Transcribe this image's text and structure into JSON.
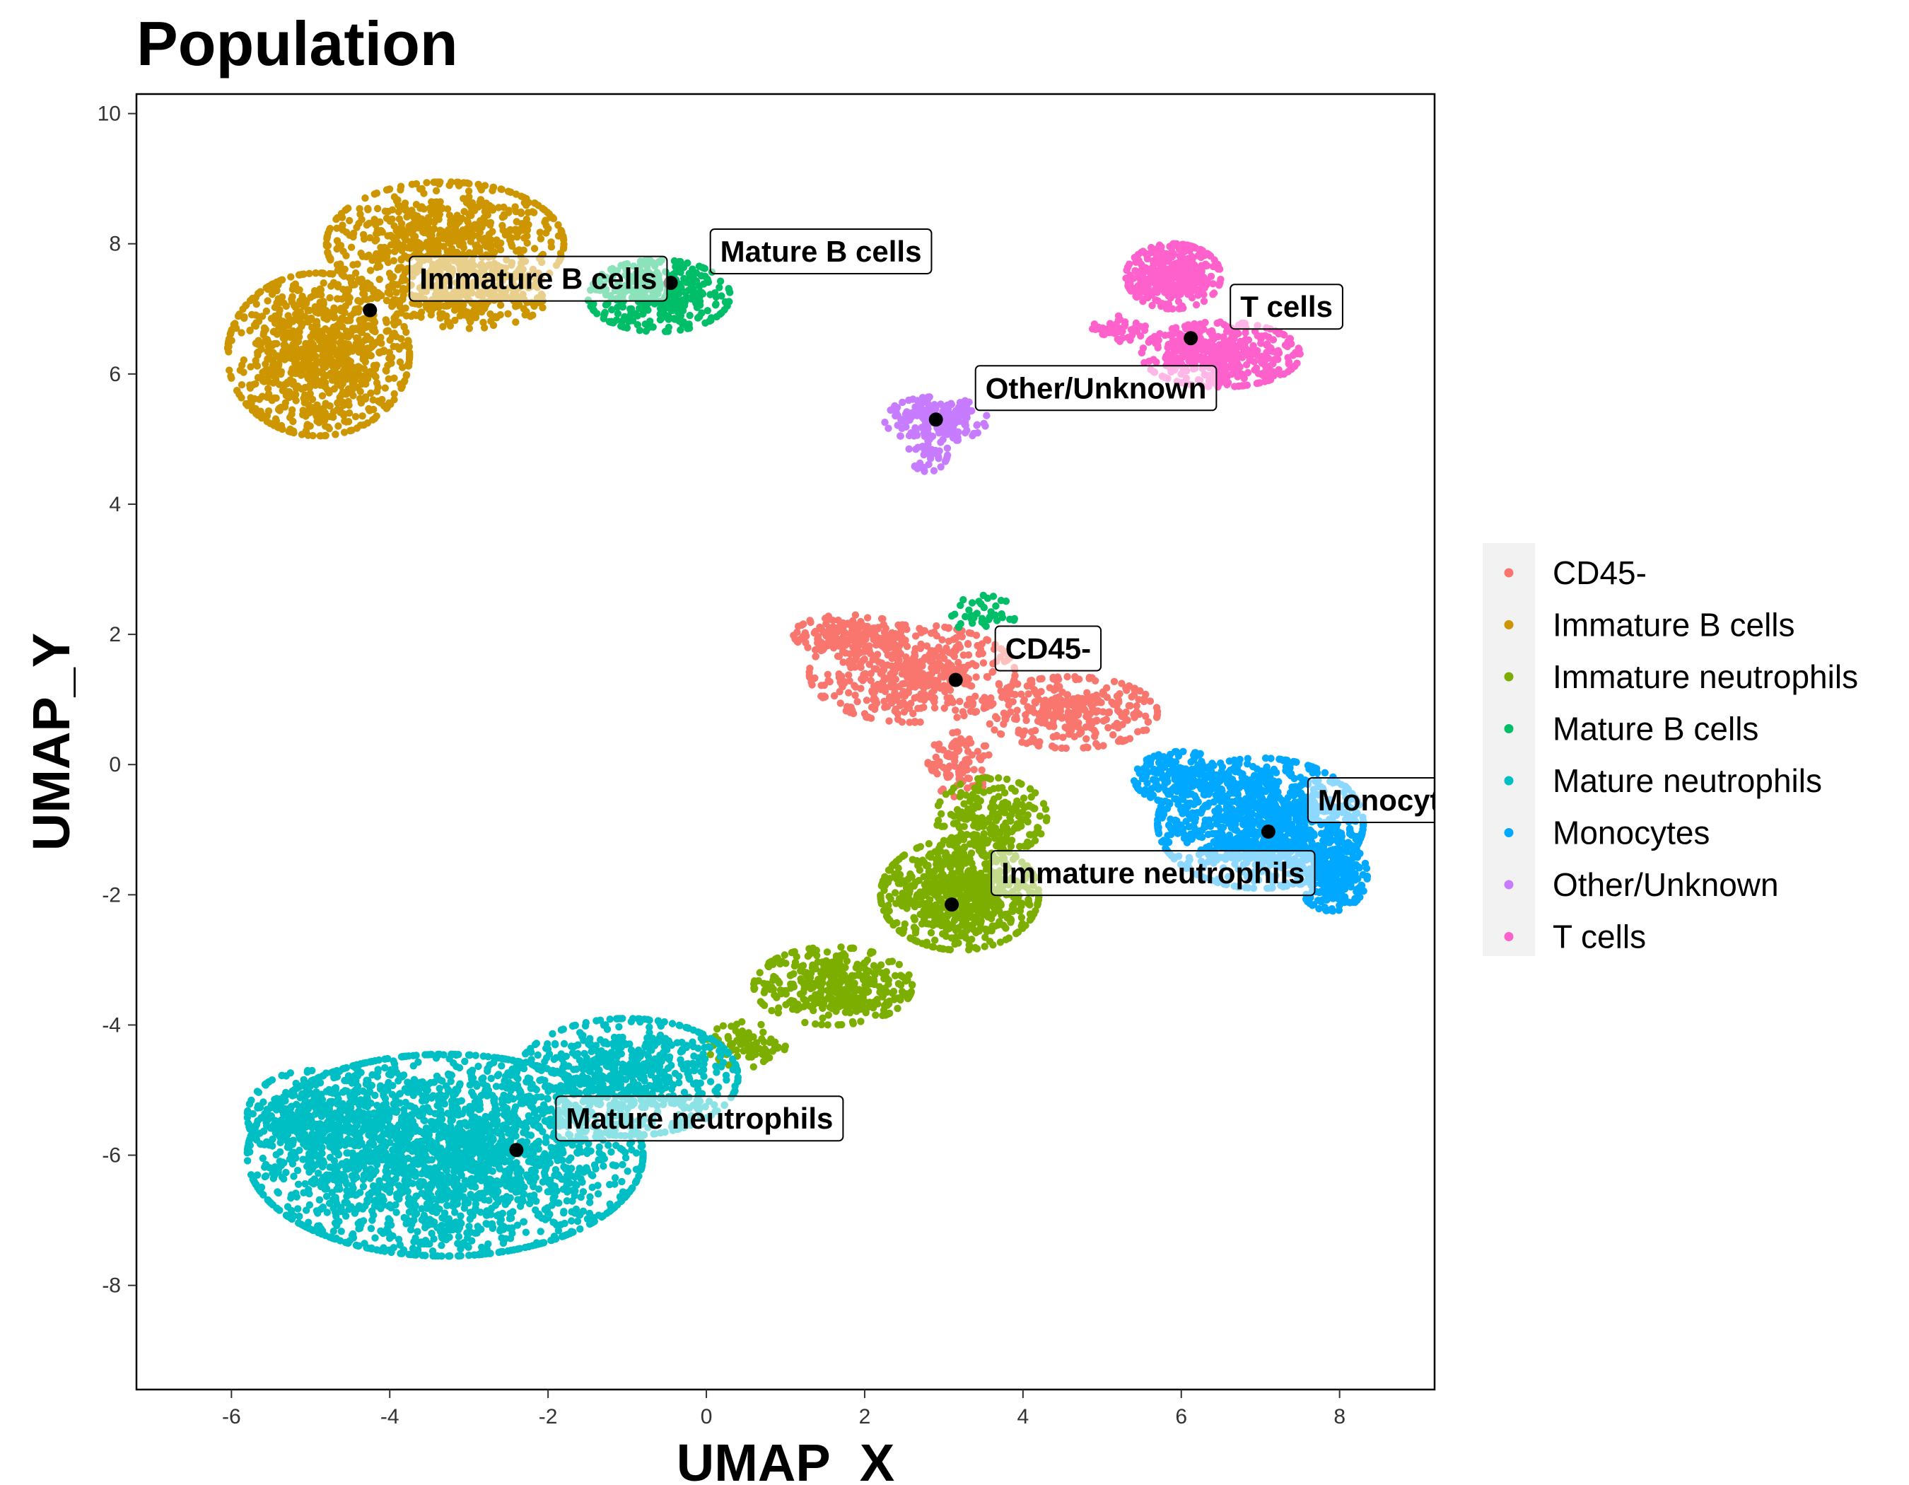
{
  "chart_data": {
    "type": "scatter",
    "title": "Population",
    "xlabel": "UMAP_X",
    "ylabel": "UMAP_Y",
    "xlim": [
      -7.2,
      9.2
    ],
    "ylim": [
      -9.6,
      10.3
    ],
    "xticks": [
      -6,
      -4,
      -2,
      0,
      2,
      4,
      6,
      8
    ],
    "yticks": [
      -8,
      -6,
      -4,
      -2,
      0,
      2,
      4,
      6,
      8,
      10
    ],
    "grid": false,
    "legend_position": "right",
    "legend_title": "",
    "series": [
      {
        "name": "CD45-",
        "color": "#F8766D"
      },
      {
        "name": "Immature B cells",
        "color": "#CD9600"
      },
      {
        "name": "Immature neutrophils",
        "color": "#7CAE00"
      },
      {
        "name": "Mature B cells",
        "color": "#00BE67"
      },
      {
        "name": "Mature neutrophils",
        "color": "#00BFC4"
      },
      {
        "name": "Monocytes",
        "color": "#00A9FF"
      },
      {
        "name": "Other/Unknown",
        "color": "#C77CFF"
      },
      {
        "name": "T cells",
        "color": "#FF61CC"
      }
    ],
    "clusters": [
      {
        "series": 0,
        "blobs": [
          {
            "cx": 2.6,
            "cy": 1.4,
            "rx": 1.3,
            "ry": 0.75,
            "n": 500
          },
          {
            "cx": 4.6,
            "cy": 0.8,
            "rx": 1.1,
            "ry": 0.55,
            "n": 320
          },
          {
            "cx": 1.8,
            "cy": 2.0,
            "rx": 0.7,
            "ry": 0.3,
            "n": 160
          },
          {
            "cx": 3.2,
            "cy": 0.0,
            "rx": 0.4,
            "ry": 0.5,
            "n": 100
          }
        ]
      },
      {
        "series": 1,
        "blobs": [
          {
            "cx": -4.9,
            "cy": 6.3,
            "rx": 1.15,
            "ry": 1.25,
            "n": 950
          },
          {
            "cx": -3.3,
            "cy": 8.0,
            "rx": 1.5,
            "ry": 0.95,
            "n": 750
          },
          {
            "cx": -3.0,
            "cy": 7.2,
            "rx": 1.0,
            "ry": 0.5,
            "n": 250
          }
        ]
      },
      {
        "series": 2,
        "blobs": [
          {
            "cx": 3.2,
            "cy": -2.0,
            "rx": 1.0,
            "ry": 0.85,
            "n": 700
          },
          {
            "cx": 1.6,
            "cy": -3.4,
            "rx": 1.0,
            "ry": 0.6,
            "n": 400
          },
          {
            "cx": 3.6,
            "cy": -0.8,
            "rx": 0.7,
            "ry": 0.6,
            "n": 220
          },
          {
            "cx": 0.5,
            "cy": -4.3,
            "rx": 0.5,
            "ry": 0.35,
            "n": 80
          }
        ]
      },
      {
        "series": 3,
        "blobs": [
          {
            "cx": -0.6,
            "cy": 7.2,
            "rx": 0.9,
            "ry": 0.55,
            "n": 380
          },
          {
            "cx": 3.5,
            "cy": 2.3,
            "rx": 0.4,
            "ry": 0.3,
            "n": 40
          }
        ]
      },
      {
        "series": 4,
        "blobs": [
          {
            "cx": -3.3,
            "cy": -6.0,
            "rx": 2.5,
            "ry": 1.55,
            "n": 2400
          },
          {
            "cx": -1.0,
            "cy": -4.8,
            "rx": 1.4,
            "ry": 0.9,
            "n": 700
          },
          {
            "cx": -5.0,
            "cy": -5.4,
            "rx": 0.8,
            "ry": 0.7,
            "n": 300
          }
        ]
      },
      {
        "series": 5,
        "blobs": [
          {
            "cx": 7.0,
            "cy": -0.9,
            "rx": 1.3,
            "ry": 1.0,
            "n": 1100
          },
          {
            "cx": 7.9,
            "cy": -1.7,
            "rx": 0.45,
            "ry": 0.55,
            "n": 250
          },
          {
            "cx": 6.0,
            "cy": -0.2,
            "rx": 0.6,
            "ry": 0.4,
            "n": 200
          }
        ]
      },
      {
        "series": 6,
        "blobs": [
          {
            "cx": 2.9,
            "cy": 5.3,
            "rx": 0.65,
            "ry": 0.35,
            "n": 180
          },
          {
            "cx": 2.8,
            "cy": 4.8,
            "rx": 0.25,
            "ry": 0.3,
            "n": 40
          }
        ]
      },
      {
        "series": 7,
        "blobs": [
          {
            "cx": 5.9,
            "cy": 7.5,
            "rx": 0.6,
            "ry": 0.5,
            "n": 380
          },
          {
            "cx": 6.5,
            "cy": 6.3,
            "rx": 1.0,
            "ry": 0.5,
            "n": 420
          },
          {
            "cx": 5.2,
            "cy": 6.7,
            "rx": 0.35,
            "ry": 0.2,
            "n": 50
          }
        ]
      }
    ],
    "labels": [
      {
        "text": "Immature B cells",
        "x": -4.25,
        "y": 6.98
      },
      {
        "text": "Mature B cells",
        "x": -0.45,
        "y": 7.4
      },
      {
        "text": "T cells",
        "x": 6.12,
        "y": 6.55
      },
      {
        "text": "Other/Unknown",
        "x": 2.9,
        "y": 5.3
      },
      {
        "text": "CD45-",
        "x": 3.15,
        "y": 1.3
      },
      {
        "text": "Monocytes",
        "x": 7.1,
        "y": -1.03
      },
      {
        "text": "Immature neutrophils",
        "x": 3.1,
        "y": -2.15
      },
      {
        "text": "Mature neutrophils",
        "x": -2.4,
        "y": -5.92
      }
    ]
  }
}
